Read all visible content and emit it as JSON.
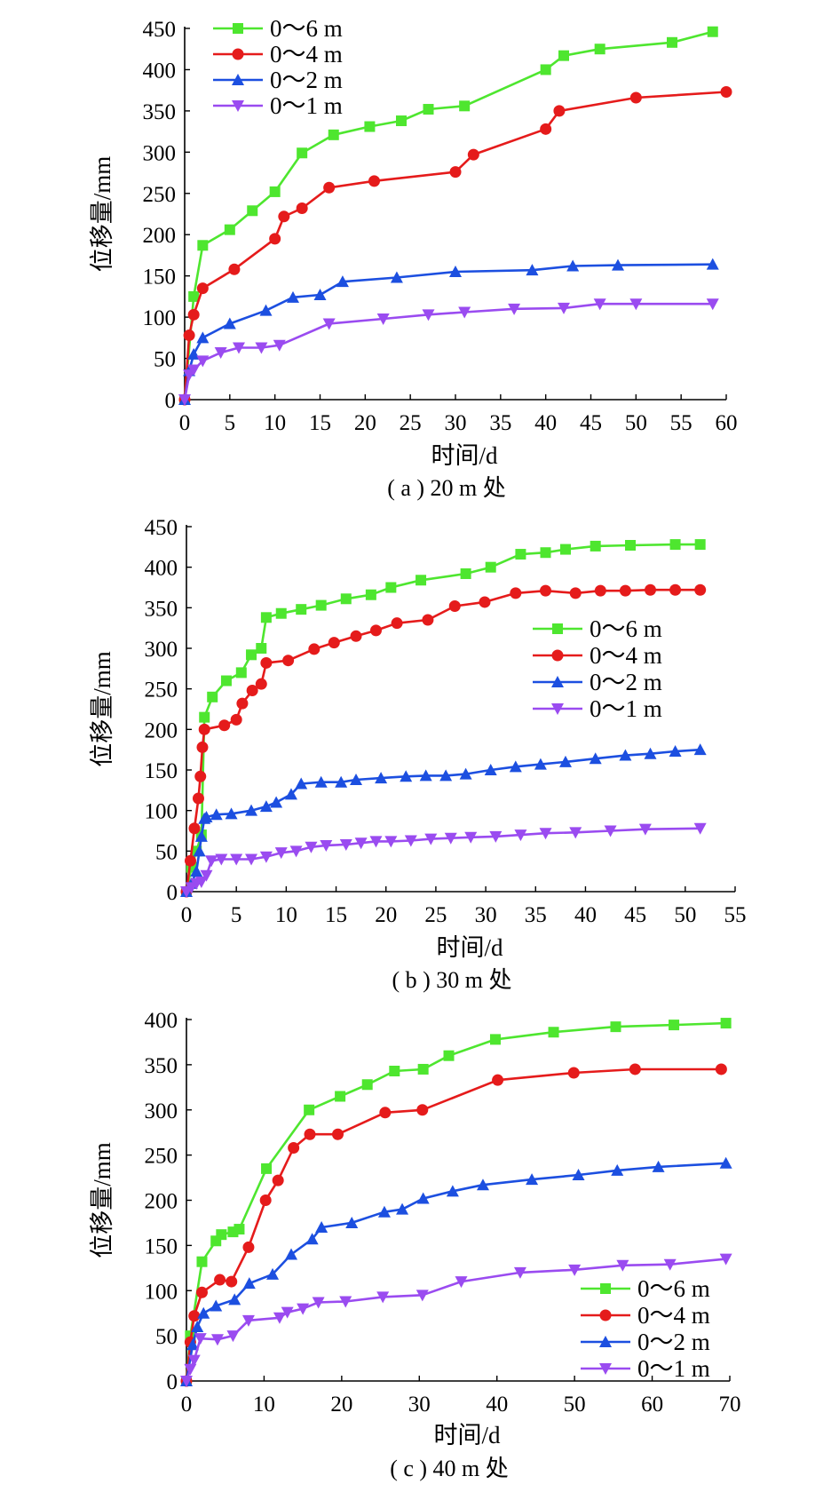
{
  "chart_data": [
    {
      "type": "line",
      "caption": "( a ) 20 m 处",
      "xlabel": "时间/d",
      "ylabel": "位移量/mm",
      "xlim": [
        0,
        60
      ],
      "ylim": [
        0,
        450
      ],
      "xticks": [
        0,
        5,
        10,
        15,
        20,
        25,
        30,
        35,
        40,
        45,
        50,
        55,
        60
      ],
      "yticks": [
        0,
        50,
        100,
        150,
        200,
        250,
        300,
        350,
        400,
        450
      ],
      "legend_position": "top-left",
      "series": [
        {
          "name": "0～6 m",
          "color": "#4ee62f",
          "marker": "square",
          "x": [
            0,
            1,
            2,
            5,
            7.5,
            10,
            13,
            16.5,
            20.5,
            24,
            27,
            31,
            40,
            42,
            46,
            54,
            58.5
          ],
          "y": [
            0,
            125,
            187,
            206,
            229,
            252,
            299,
            321,
            331,
            338,
            352,
            356,
            400,
            417,
            425,
            433,
            446
          ]
        },
        {
          "name": "0～4 m",
          "color": "#e51b1b",
          "marker": "circle",
          "x": [
            0,
            0.5,
            1,
            2,
            5.5,
            10,
            11,
            13,
            16,
            21,
            30,
            32,
            40,
            41.5,
            50,
            60
          ],
          "y": [
            0,
            78,
            103,
            135,
            158,
            195,
            222,
            232,
            257,
            265,
            276,
            297,
            328,
            350,
            366,
            373
          ]
        },
        {
          "name": "0～2 m",
          "color": "#1c4fe0",
          "marker": "triangle-up",
          "x": [
            0,
            0.5,
            1,
            2,
            5,
            9,
            12,
            15,
            17.5,
            23.5,
            30,
            38.5,
            43,
            48,
            58.5
          ],
          "y": [
            0,
            35,
            55,
            75,
            92,
            108,
            124,
            127,
            143,
            148,
            155,
            157,
            162,
            163,
            164
          ]
        },
        {
          "name": "0～1 m",
          "color": "#9a4bf0",
          "marker": "triangle-down",
          "x": [
            0,
            0.5,
            1,
            2,
            4,
            6,
            8.5,
            10.5,
            16,
            22,
            27,
            31,
            36.5,
            42,
            46,
            50,
            58.5
          ],
          "y": [
            0,
            30,
            36,
            47,
            57,
            63,
            63,
            66,
            92,
            98,
            103,
            106,
            110,
            111,
            116,
            116,
            116
          ]
        }
      ]
    },
    {
      "type": "line",
      "caption": "( b ) 30 m 处",
      "xlabel": "时间/d",
      "ylabel": "位移量/mm",
      "xlim": [
        0,
        55
      ],
      "ylim": [
        0,
        450
      ],
      "xticks": [
        0,
        5,
        10,
        15,
        20,
        25,
        30,
        35,
        40,
        45,
        50,
        55
      ],
      "yticks": [
        0,
        50,
        100,
        150,
        200,
        250,
        300,
        350,
        400,
        450
      ],
      "legend_position": "middle-right",
      "series": [
        {
          "name": "0～6 m",
          "color": "#4ee62f",
          "marker": "square",
          "x": [
            0,
            0.5,
            1,
            1.5,
            1.8,
            2.6,
            4,
            5.5,
            6.5,
            7.5,
            8,
            9.5,
            11.5,
            13.5,
            16,
            18.5,
            20.5,
            23.5,
            28,
            30.5,
            33.5,
            36,
            38,
            41,
            44.5,
            49,
            51.5
          ],
          "y": [
            0,
            30,
            50,
            70,
            215,
            240,
            260,
            270,
            292,
            300,
            338,
            343,
            348,
            353,
            361,
            366,
            375,
            384,
            392,
            400,
            416,
            418,
            422,
            426,
            427,
            428,
            428
          ]
        },
        {
          "name": "0～4 m",
          "color": "#e51b1b",
          "marker": "circle",
          "x": [
            0,
            0.4,
            0.8,
            1.2,
            1.4,
            1.6,
            1.8,
            3.8,
            5,
            5.6,
            6.6,
            7.5,
            8,
            10.2,
            12.8,
            14.8,
            17,
            19,
            21.1,
            24.2,
            26.9,
            29.9,
            33,
            36,
            39,
            41.5,
            44,
            46.5,
            49,
            51.5
          ],
          "y": [
            0,
            38,
            78,
            115,
            142,
            178,
            200,
            205,
            212,
            232,
            248,
            256,
            282,
            285,
            299,
            307,
            315,
            322,
            331,
            335,
            352,
            357,
            368,
            371,
            368,
            371,
            371,
            372,
            372,
            372
          ]
        },
        {
          "name": "0～2 m",
          "color": "#1c4fe0",
          "marker": "triangle-up",
          "x": [
            0,
            0.5,
            1,
            1.3,
            1.5,
            1.8,
            2,
            3,
            4.5,
            6.5,
            8,
            9,
            10.5,
            11.5,
            13.5,
            15.5,
            17,
            19.5,
            22,
            24,
            26,
            28,
            30.5,
            33,
            35.5,
            38,
            41,
            44,
            46.5,
            49,
            51.5
          ],
          "y": [
            0,
            10,
            25,
            50,
            68,
            90,
            92,
            95,
            96,
            100,
            105,
            110,
            120,
            133,
            135,
            135,
            138,
            140,
            142,
            143,
            143,
            145,
            150,
            154,
            157,
            160,
            164,
            168,
            170,
            173,
            175
          ]
        },
        {
          "name": "0～1 m",
          "color": "#9a4bf0",
          "marker": "triangle-down",
          "x": [
            0,
            0.5,
            1,
            1.5,
            2,
            2.5,
            3.5,
            5,
            6.5,
            8,
            9.5,
            11,
            12.5,
            14,
            16,
            17.5,
            19,
            20.5,
            22.5,
            24.5,
            26.5,
            28.5,
            31,
            33.5,
            36,
            39,
            42.5,
            46,
            51.5
          ],
          "y": [
            0,
            5,
            10,
            12,
            20,
            38,
            40,
            40,
            40,
            43,
            48,
            50,
            55,
            57,
            58,
            60,
            62,
            62,
            63,
            65,
            66,
            67,
            68,
            70,
            72,
            73,
            75,
            77,
            78
          ]
        }
      ]
    },
    {
      "type": "line",
      "caption": "( c ) 40 m 处",
      "xlabel": "时间/d",
      "ylabel": "位移量/mm",
      "xlim": [
        0,
        70
      ],
      "ylim": [
        0,
        400
      ],
      "xticks": [
        0,
        10,
        20,
        30,
        40,
        50,
        60,
        70
      ],
      "yticks": [
        0,
        50,
        100,
        150,
        200,
        250,
        300,
        350,
        400
      ],
      "legend_position": "bottom-right",
      "series": [
        {
          "name": "0～6 m",
          "color": "#4ee62f",
          "marker": "square",
          "x": [
            0,
            0.5,
            2,
            3.8,
            4.5,
            6,
            6.8,
            10.3,
            15.8,
            19.8,
            23.3,
            26.8,
            30.5,
            33.8,
            39.8,
            47.3,
            55.3,
            62.8,
            69.5
          ],
          "y": [
            0,
            50,
            132,
            155,
            162,
            165,
            168,
            235,
            300,
            315,
            328,
            343,
            345,
            360,
            378,
            386,
            392,
            394,
            396
          ]
        },
        {
          "name": "0～4 m",
          "color": "#e51b1b",
          "marker": "circle",
          "x": [
            0,
            0.5,
            1,
            2,
            4.3,
            5.8,
            8,
            10.2,
            11.8,
            13.8,
            15.9,
            19.5,
            25.6,
            30.4,
            40.1,
            49.9,
            57.8,
            68.9
          ],
          "y": [
            0,
            43,
            72,
            98,
            112,
            110,
            148,
            200,
            222,
            258,
            273,
            273,
            297,
            300,
            333,
            341,
            345,
            345
          ]
        },
        {
          "name": "0～2 m",
          "color": "#1c4fe0",
          "marker": "triangle-up",
          "x": [
            0,
            0.8,
            1.4,
            2.2,
            3.8,
            6.2,
            8.1,
            11.1,
            13.5,
            16.2,
            17.4,
            21.3,
            25.5,
            27.8,
            30.5,
            34.3,
            38.2,
            44.5,
            50.5,
            55.5,
            60.8,
            69.5
          ],
          "y": [
            0,
            40,
            60,
            75,
            83,
            90,
            108,
            118,
            140,
            157,
            170,
            175,
            187,
            190,
            202,
            210,
            217,
            223,
            228,
            233,
            237,
            241
          ]
        },
        {
          "name": "0～1 m",
          "color": "#9a4bf0",
          "marker": "triangle-down",
          "x": [
            0,
            0.5,
            1,
            1.8,
            4,
            6,
            8,
            12,
            13,
            15,
            17,
            20.5,
            25.3,
            30.4,
            35.4,
            43,
            50,
            56.2,
            62.3,
            69.5
          ],
          "y": [
            0,
            13,
            23,
            47,
            46,
            50,
            67,
            70,
            76,
            80,
            87,
            88,
            93,
            95,
            110,
            120,
            123,
            128,
            129,
            135
          ]
        }
      ]
    }
  ]
}
